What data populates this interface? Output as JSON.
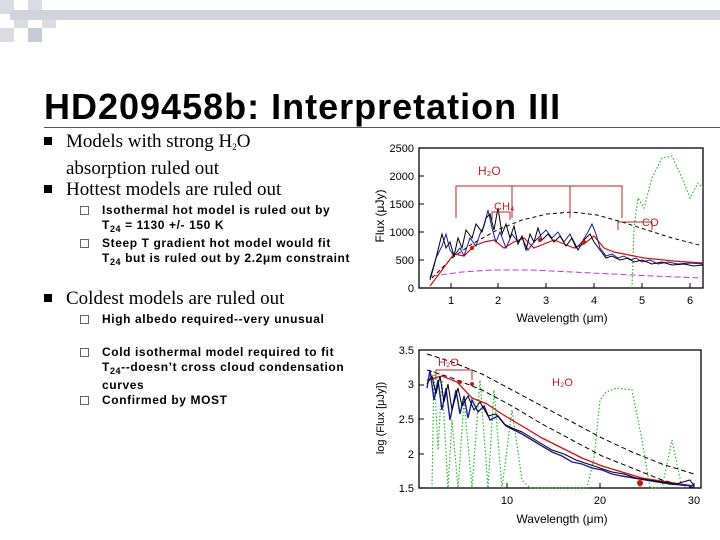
{
  "slide": {
    "title": "HD209458b: Interpretation III",
    "bullets": [
      {
        "pre": "Models with strong H",
        "sub": "2",
        "post": "O absorption ruled out"
      },
      {
        "text": "Hottest models are ruled out"
      },
      {
        "text": "Coldest models are ruled out"
      }
    ],
    "sub_bullets_hot": [
      {
        "pre": "Isothermal hot model is ruled out by T",
        "sub": "24",
        "post": " = 1130 +/- 150 K"
      },
      {
        "pre": "Steep T gradient hot model would fit T",
        "sub": "24",
        "post": " but is ruled out by 2.2μm constraint"
      }
    ],
    "sub_bullets_cold": [
      {
        "text": "High albedo required--very unusual"
      },
      {
        "pre": "Cold isothermal model required to fit T",
        "sub": "24",
        "post": "--doesn’t cross cloud condensation curves"
      },
      {
        "text": "Confirmed by MOST"
      }
    ]
  },
  "top_plot": {
    "ylabel": "Flux (μJy)",
    "xlabel": "Wavelength (μm)",
    "yticks": [
      "2500",
      "2000",
      "1500",
      "1000",
      "500",
      "0"
    ],
    "xticks": [
      "1",
      "2",
      "3",
      "4",
      "5",
      "6"
    ],
    "annotations": {
      "h2o": "H₂O",
      "ch4": "CH₄",
      "co": "CO"
    },
    "colors": {
      "data_black": "#000000",
      "data_blue": "#1a1aa0",
      "model_red": "#d01010",
      "model_dashed": "#000000",
      "model_magenta": "#cc33cc",
      "model_green": "#22bb22",
      "annotation_red": "#c02020"
    }
  },
  "bottom_plot": {
    "ylabel": "log (Flux [μJy])",
    "xlabel": "Wavelength (μm)",
    "yticks": [
      "3.5",
      "3",
      "2.5",
      "2",
      "1.5"
    ],
    "xticks": [
      "10",
      "20",
      "30"
    ],
    "annotations": {
      "h2o_left": "H₂O",
      "h2o_right": "H₂O"
    }
  }
}
